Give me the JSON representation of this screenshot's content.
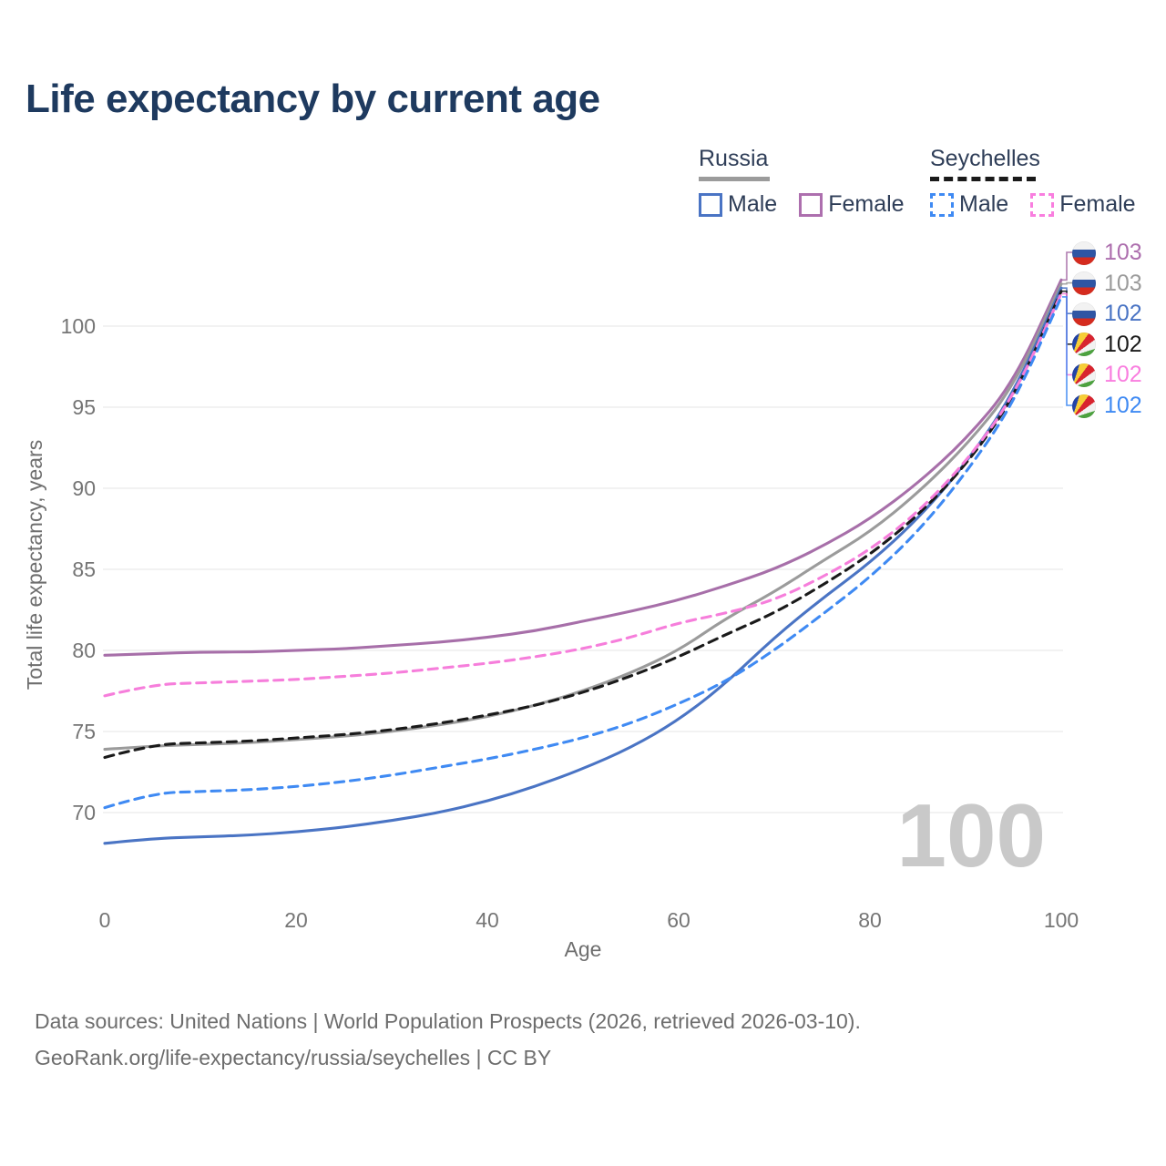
{
  "header": {
    "title": "Life expectancy by current age"
  },
  "legend": {
    "groups": [
      {
        "name": "Russia",
        "items": [
          {
            "label": "Male"
          },
          {
            "label": "Female"
          }
        ]
      },
      {
        "name": "Seychelles",
        "items": [
          {
            "label": "Male"
          },
          {
            "label": "Female"
          }
        ]
      }
    ]
  },
  "right_labels": [
    {
      "country": "Russia",
      "flag": "ru",
      "value": "103",
      "color": "#ad6fae"
    },
    {
      "country": "Russia",
      "flag": "ru",
      "value": "103",
      "color": "#9b9b9b"
    },
    {
      "country": "Russia",
      "flag": "ru",
      "value": "102",
      "color": "#4a74c4"
    },
    {
      "country": "Seychelles",
      "flag": "sc",
      "value": "102",
      "color": "#1a1a1a"
    },
    {
      "country": "Seychelles",
      "flag": "sc",
      "value": "102",
      "color": "#f97edf"
    },
    {
      "country": "Seychelles",
      "flag": "sc",
      "value": "102",
      "color": "#3f8af3"
    }
  ],
  "watermark": "100",
  "footer": {
    "line1": "Data sources: United Nations | World Population Prospects (2026, retrieved 2026-03-10).",
    "line2": "GeoRank.org/life-expectancy/russia/seychelles | CC BY"
  },
  "chart_data": {
    "type": "line",
    "title": "Life expectancy by current age",
    "xlabel": "Age",
    "ylabel": "Total life expectancy, years",
    "x_ticks": [
      0,
      20,
      40,
      60,
      80,
      100
    ],
    "y_ticks": [
      70,
      75,
      80,
      85,
      90,
      95,
      100
    ],
    "xlim": [
      0,
      100
    ],
    "ylim": [
      66.5,
      104
    ],
    "grid": "horizontal",
    "legend_position": "top-right",
    "x": [
      0,
      5,
      10,
      15,
      20,
      25,
      30,
      35,
      40,
      45,
      50,
      55,
      60,
      65,
      70,
      75,
      80,
      85,
      90,
      95,
      100
    ],
    "series": [
      {
        "name": "Russia Female",
        "country": "Russia",
        "sex": "Female",
        "line_style": "solid",
        "color": "#a76fa9",
        "end_label": "103",
        "values": [
          79.7,
          79.8,
          79.9,
          79.9,
          80.0,
          80.1,
          80.3,
          80.5,
          80.8,
          81.2,
          81.8,
          82.4,
          83.1,
          84.0,
          85.0,
          86.4,
          88.1,
          90.3,
          93.0,
          96.5,
          102.85
        ]
      },
      {
        "name": "Russia Both sexes",
        "country": "Russia",
        "sex": "Both",
        "line_style": "solid",
        "color": "#9b9b9b",
        "end_label": "103",
        "values": [
          73.9,
          74.1,
          74.2,
          74.3,
          74.5,
          74.7,
          75.0,
          75.4,
          75.9,
          76.6,
          77.5,
          78.6,
          80.0,
          82.0,
          83.6,
          85.5,
          87.3,
          89.7,
          92.6,
          96.2,
          102.6
        ]
      },
      {
        "name": "Russia Male",
        "country": "Russia",
        "sex": "Male",
        "line_style": "solid",
        "color": "#4a74c4",
        "end_label": "102",
        "values": [
          68.1,
          68.4,
          68.5,
          68.6,
          68.8,
          69.1,
          69.5,
          70.0,
          70.7,
          71.6,
          72.7,
          74.0,
          75.7,
          78.0,
          80.8,
          83.2,
          85.4,
          88.1,
          91.5,
          95.8,
          102.35
        ]
      },
      {
        "name": "Seychelles Both sexes",
        "country": "Seychelles",
        "sex": "Both",
        "line_style": "dashed",
        "color": "#1a1a1a",
        "end_label": "102",
        "values": [
          73.4,
          74.2,
          74.3,
          74.4,
          74.6,
          74.8,
          75.1,
          75.5,
          76.0,
          76.6,
          77.4,
          78.4,
          79.6,
          81.0,
          82.3,
          84.0,
          85.9,
          88.3,
          91.4,
          95.5,
          102.15
        ]
      },
      {
        "name": "Seychelles Female",
        "country": "Seychelles",
        "sex": "Female",
        "line_style": "dashed",
        "color": "#f67edb",
        "end_label": "102",
        "values": [
          77.2,
          77.9,
          78.0,
          78.1,
          78.2,
          78.4,
          78.6,
          78.9,
          79.2,
          79.6,
          80.1,
          80.8,
          81.7,
          82.3,
          83.1,
          84.5,
          86.2,
          88.5,
          91.6,
          95.6,
          102.0
        ]
      },
      {
        "name": "Seychelles Male",
        "country": "Seychelles",
        "sex": "Male",
        "line_style": "dashed",
        "color": "#3f8af3",
        "end_label": "102",
        "values": [
          70.3,
          71.2,
          71.3,
          71.4,
          71.6,
          71.9,
          72.3,
          72.8,
          73.3,
          73.9,
          74.6,
          75.5,
          76.7,
          78.1,
          80.0,
          82.2,
          84.5,
          87.3,
          90.9,
          95.2,
          101.8
        ]
      }
    ]
  }
}
